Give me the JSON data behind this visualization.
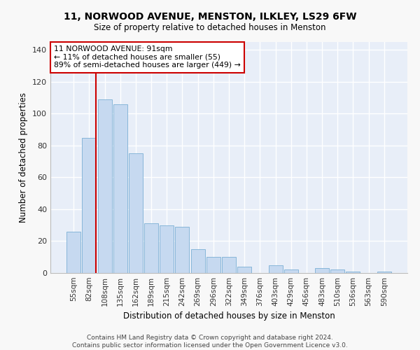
{
  "title1": "11, NORWOOD AVENUE, MENSTON, ILKLEY, LS29 6FW",
  "title2": "Size of property relative to detached houses in Menston",
  "xlabel": "Distribution of detached houses by size in Menston",
  "ylabel": "Number of detached properties",
  "categories": [
    "55sqm",
    "82sqm",
    "108sqm",
    "135sqm",
    "162sqm",
    "189sqm",
    "215sqm",
    "242sqm",
    "269sqm",
    "296sqm",
    "322sqm",
    "349sqm",
    "376sqm",
    "403sqm",
    "429sqm",
    "456sqm",
    "483sqm",
    "510sqm",
    "536sqm",
    "563sqm",
    "590sqm"
  ],
  "values": [
    26,
    85,
    109,
    106,
    75,
    31,
    30,
    29,
    15,
    10,
    10,
    4,
    0,
    5,
    2,
    0,
    3,
    2,
    1,
    0,
    1
  ],
  "bar_color": "#c6d9f0",
  "bar_edge_color": "#7aafd4",
  "marker_label": "11 NORWOOD AVENUE: 91sqm",
  "annotation_line1": "← 11% of detached houses are smaller (55)",
  "annotation_line2": "89% of semi-detached houses are larger (449) →",
  "annotation_box_color": "#ffffff",
  "annotation_box_edge_color": "#cc0000",
  "vline_color": "#cc0000",
  "vline_x": 1.42,
  "ylim": [
    0,
    145
  ],
  "yticks": [
    0,
    20,
    40,
    60,
    80,
    100,
    120,
    140
  ],
  "background_color": "#e8eef8",
  "grid_color": "#ffffff",
  "footer_line1": "Contains HM Land Registry data © Crown copyright and database right 2024.",
  "footer_line2": "Contains public sector information licensed under the Open Government Licence v3.0."
}
